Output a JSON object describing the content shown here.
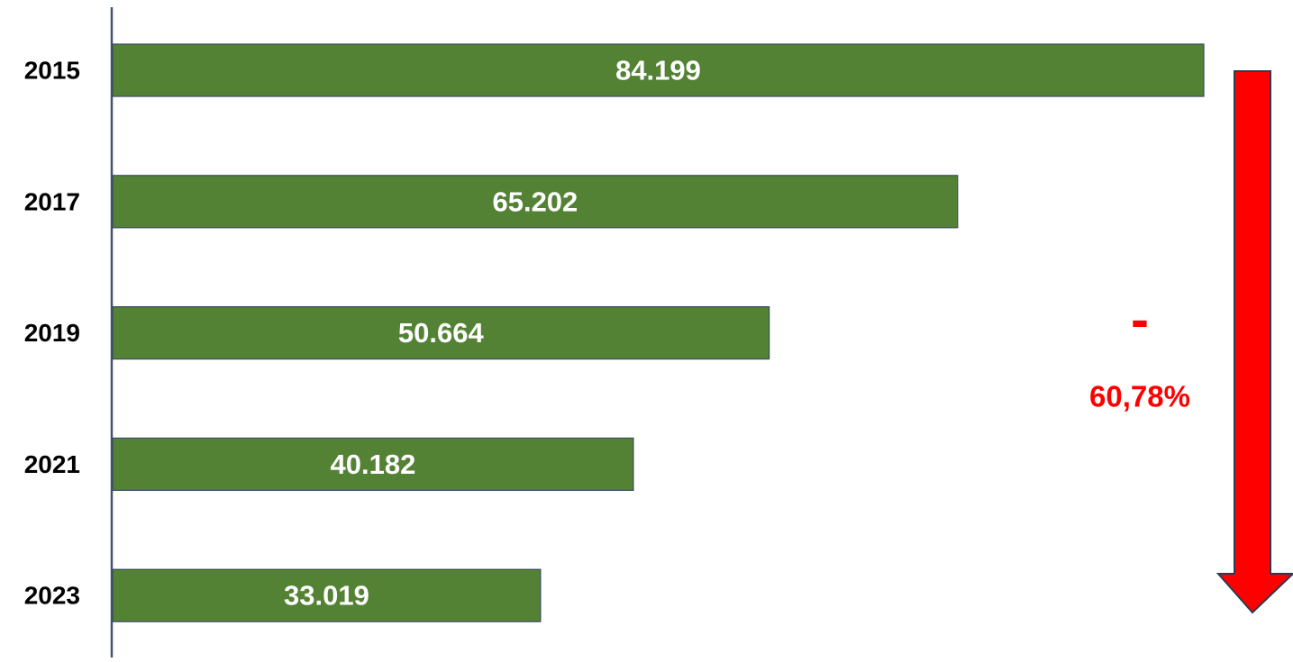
{
  "chart_data": {
    "type": "bar",
    "orientation": "horizontal",
    "categories": [
      "2015",
      "2017",
      "2019",
      "2021",
      "2023"
    ],
    "values": [
      84199,
      65202,
      50664,
      40182,
      33019
    ],
    "data_labels": [
      "84.199",
      "65.202",
      "50.664",
      "40.182",
      "33.019"
    ],
    "title": "",
    "xlabel": "",
    "ylabel": "",
    "xlim": [
      0,
      84199
    ],
    "grid": false,
    "legend": "none",
    "annotation": {
      "sign": "-",
      "text": "60,78%",
      "arrow": "down"
    }
  },
  "colors": {
    "bar": "#548235",
    "bar_border": "#3b4a63",
    "axis": "#44546a",
    "category_text": "#000000",
    "value_text": "#ffffff",
    "arrow": "#ff0000",
    "arrow_border": "#2f3b52",
    "annotation_text": "#ff0000"
  }
}
